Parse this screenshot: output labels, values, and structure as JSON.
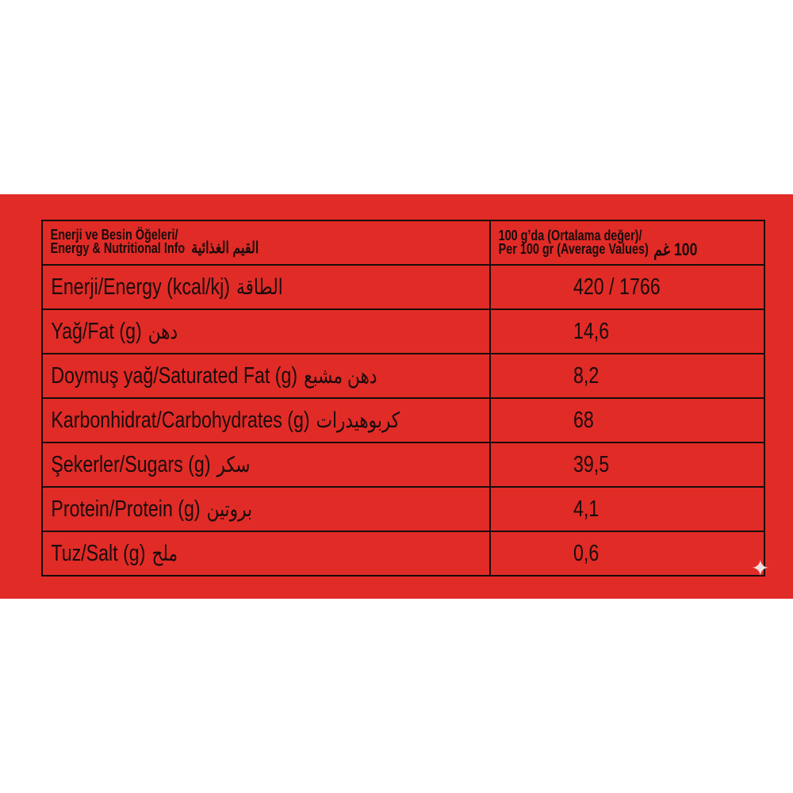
{
  "header": {
    "left_line1": "Enerji ve Besin Öğeleri/",
    "left_line2": "Energy & Nutritional Info",
    "left_arabic": "القيم الغذائية",
    "right_line1": "100 g’da (Ortalama değer)/",
    "right_line2": "Per 100 gr (Average Values)",
    "right_arabic": "100 غم"
  },
  "rows": [
    {
      "label": "Enerji/Energy (kcal/kj)",
      "arabic": "الطاقة",
      "value": "420 / 1766"
    },
    {
      "label": "Yağ/Fat (g)",
      "arabic": "دهن",
      "value": "14,6"
    },
    {
      "label": "Doymuş yağ/Saturated Fat (g)",
      "arabic": "دهن مشبع",
      "value": "8,2"
    },
    {
      "label": "Karbonhidrat/Carbohydrates (g)",
      "arabic": "كربوهيدرات",
      "value": "68"
    },
    {
      "label": "Şekerler/Sugars (g)",
      "arabic": "سكر",
      "value": "39,5"
    },
    {
      "label": "Protein/Protein (g)",
      "arabic": "بروتين",
      "value": "4,1"
    },
    {
      "label": "Tuz/Salt (g)",
      "arabic": "ملح",
      "value": "0,6"
    }
  ],
  "colors": {
    "background_band": "#e12b27",
    "text": "#1a0c0c"
  },
  "icons": {
    "corner": "sparkle-icon"
  }
}
